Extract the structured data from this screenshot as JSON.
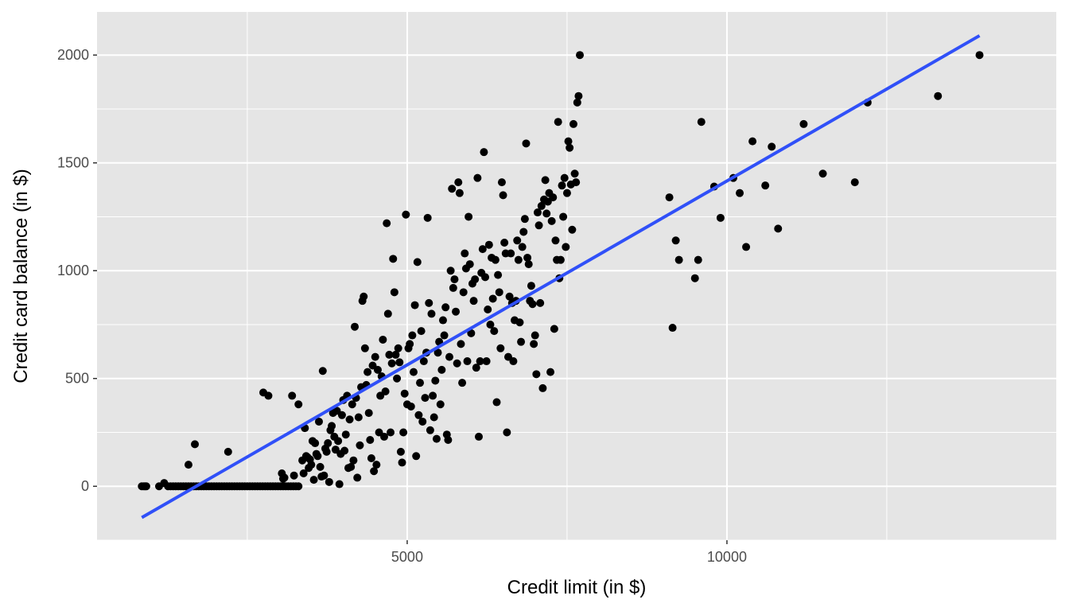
{
  "chart_data": {
    "type": "scatter",
    "xlabel": "Credit limit (in $)",
    "ylabel": "Credit card balance (in $)",
    "xlim": [
      150,
      15150
    ],
    "ylim": [
      -250,
      2200
    ],
    "xticks": [
      5000,
      10000
    ],
    "xticks_minor": [
      2500,
      7500,
      12500
    ],
    "yticks": [
      0,
      500,
      1000,
      1500,
      2000
    ],
    "yticks_minor": [
      -250,
      250,
      750,
      1250,
      1750
    ],
    "grid": true,
    "legend": "none",
    "colors": {
      "panel": "#e5e5e5",
      "grid": "#ffffff",
      "points": "#000000",
      "fit_line": "#3050f8"
    },
    "fit_line": {
      "x": [
        850,
        13950
      ],
      "y": [
        -145,
        2090
      ]
    },
    "points": [
      [
        850,
        0
      ],
      [
        880,
        0
      ],
      [
        900,
        0
      ],
      [
        920,
        0
      ],
      [
        1120,
        0
      ],
      [
        1200,
        15
      ],
      [
        1260,
        0
      ],
      [
        1300,
        0
      ],
      [
        1340,
        0
      ],
      [
        1380,
        0
      ],
      [
        1420,
        0
      ],
      [
        1460,
        0
      ],
      [
        1500,
        0
      ],
      [
        1540,
        0
      ],
      [
        1580,
        0
      ],
      [
        1620,
        0
      ],
      [
        1660,
        0
      ],
      [
        1700,
        0
      ],
      [
        1740,
        0
      ],
      [
        1780,
        0
      ],
      [
        1820,
        0
      ],
      [
        1860,
        0
      ],
      [
        1900,
        0
      ],
      [
        1940,
        0
      ],
      [
        1980,
        0
      ],
      [
        2020,
        0
      ],
      [
        2060,
        0
      ],
      [
        2100,
        0
      ],
      [
        2140,
        0
      ],
      [
        2180,
        0
      ],
      [
        2220,
        0
      ],
      [
        2260,
        0
      ],
      [
        2300,
        0
      ],
      [
        2340,
        0
      ],
      [
        2380,
        0
      ],
      [
        2420,
        0
      ],
      [
        2460,
        0
      ],
      [
        2500,
        0
      ],
      [
        2540,
        0
      ],
      [
        2580,
        0
      ],
      [
        2620,
        0
      ],
      [
        2660,
        0
      ],
      [
        2700,
        0
      ],
      [
        2740,
        0
      ],
      [
        2780,
        0
      ],
      [
        2820,
        0
      ],
      [
        2860,
        0
      ],
      [
        2900,
        0
      ],
      [
        2940,
        0
      ],
      [
        2980,
        0
      ],
      [
        3020,
        0
      ],
      [
        3060,
        0
      ],
      [
        3100,
        0
      ],
      [
        3140,
        0
      ],
      [
        3180,
        0
      ],
      [
        3220,
        0
      ],
      [
        3260,
        0
      ],
      [
        3300,
        0
      ],
      [
        1580,
        100
      ],
      [
        1680,
        195
      ],
      [
        2200,
        160
      ],
      [
        2750,
        435
      ],
      [
        2830,
        420
      ],
      [
        3040,
        60
      ],
      [
        3060,
        35
      ],
      [
        3080,
        40
      ],
      [
        3200,
        420
      ],
      [
        3230,
        50
      ],
      [
        3300,
        380
      ],
      [
        3360,
        120
      ],
      [
        3380,
        60
      ],
      [
        3400,
        270
      ],
      [
        3420,
        140
      ],
      [
        3440,
        135
      ],
      [
        3460,
        85
      ],
      [
        3480,
        125
      ],
      [
        3500,
        100
      ],
      [
        3520,
        210
      ],
      [
        3540,
        30
      ],
      [
        3560,
        200
      ],
      [
        3580,
        150
      ],
      [
        3600,
        140
      ],
      [
        3620,
        300
      ],
      [
        3640,
        90
      ],
      [
        3660,
        45
      ],
      [
        3680,
        535
      ],
      [
        3700,
        50
      ],
      [
        3720,
        175
      ],
      [
        3740,
        160
      ],
      [
        3760,
        200
      ],
      [
        3780,
        20
      ],
      [
        3800,
        260
      ],
      [
        3820,
        280
      ],
      [
        3840,
        340
      ],
      [
        3860,
        230
      ],
      [
        3880,
        170
      ],
      [
        3900,
        350
      ],
      [
        3920,
        210
      ],
      [
        3940,
        10
      ],
      [
        3960,
        150
      ],
      [
        3980,
        330
      ],
      [
        4000,
        400
      ],
      [
        4020,
        165
      ],
      [
        4040,
        240
      ],
      [
        4060,
        420
      ],
      [
        4080,
        85
      ],
      [
        4100,
        310
      ],
      [
        4120,
        90
      ],
      [
        4140,
        380
      ],
      [
        4160,
        120
      ],
      [
        4180,
        740
      ],
      [
        4200,
        410
      ],
      [
        4220,
        40
      ],
      [
        4240,
        320
      ],
      [
        4260,
        190
      ],
      [
        4280,
        460
      ],
      [
        4300,
        860
      ],
      [
        4320,
        880
      ],
      [
        4340,
        640
      ],
      [
        4360,
        470
      ],
      [
        4380,
        530
      ],
      [
        4400,
        340
      ],
      [
        4420,
        215
      ],
      [
        4440,
        130
      ],
      [
        4460,
        560
      ],
      [
        4480,
        70
      ],
      [
        4500,
        600
      ],
      [
        4520,
        100
      ],
      [
        4540,
        540
      ],
      [
        4560,
        250
      ],
      [
        4580,
        420
      ],
      [
        4600,
        510
      ],
      [
        4620,
        680
      ],
      [
        4640,
        230
      ],
      [
        4660,
        440
      ],
      [
        4680,
        1220
      ],
      [
        4700,
        800
      ],
      [
        4720,
        610
      ],
      [
        4740,
        250
      ],
      [
        4760,
        570
      ],
      [
        4780,
        1055
      ],
      [
        4800,
        900
      ],
      [
        4820,
        610
      ],
      [
        4840,
        500
      ],
      [
        4860,
        640
      ],
      [
        4880,
        575
      ],
      [
        4900,
        160
      ],
      [
        4920,
        110
      ],
      [
        4940,
        250
      ],
      [
        4960,
        430
      ],
      [
        4980,
        1260
      ],
      [
        5000,
        380
      ],
      [
        5020,
        640
      ],
      [
        5040,
        660
      ],
      [
        5060,
        370
      ],
      [
        5080,
        700
      ],
      [
        5100,
        530
      ],
      [
        5120,
        840
      ],
      [
        5140,
        140
      ],
      [
        5160,
        1040
      ],
      [
        5180,
        330
      ],
      [
        5200,
        480
      ],
      [
        5220,
        720
      ],
      [
        5240,
        300
      ],
      [
        5260,
        580
      ],
      [
        5280,
        410
      ],
      [
        5300,
        620
      ],
      [
        5320,
        1245
      ],
      [
        5340,
        850
      ],
      [
        5360,
        260
      ],
      [
        5380,
        800
      ],
      [
        5400,
        420
      ],
      [
        5420,
        320
      ],
      [
        5440,
        490
      ],
      [
        5460,
        220
      ],
      [
        5480,
        620
      ],
      [
        5500,
        670
      ],
      [
        5520,
        380
      ],
      [
        5540,
        540
      ],
      [
        5560,
        770
      ],
      [
        5580,
        700
      ],
      [
        5600,
        830
      ],
      [
        5620,
        240
      ],
      [
        5640,
        215
      ],
      [
        5660,
        600
      ],
      [
        5680,
        1000
      ],
      [
        5700,
        1380
      ],
      [
        5720,
        920
      ],
      [
        5740,
        960
      ],
      [
        5760,
        810
      ],
      [
        5780,
        570
      ],
      [
        5800,
        1410
      ],
      [
        5820,
        1360
      ],
      [
        5840,
        660
      ],
      [
        5860,
        480
      ],
      [
        5880,
        900
      ],
      [
        5900,
        1080
      ],
      [
        5920,
        1010
      ],
      [
        5940,
        580
      ],
      [
        5960,
        1250
      ],
      [
        5980,
        1030
      ],
      [
        6000,
        710
      ],
      [
        6020,
        940
      ],
      [
        6040,
        860
      ],
      [
        6060,
        960
      ],
      [
        6080,
        550
      ],
      [
        6100,
        1430
      ],
      [
        6120,
        230
      ],
      [
        6140,
        580
      ],
      [
        6160,
        990
      ],
      [
        6180,
        1100
      ],
      [
        6200,
        1550
      ],
      [
        6220,
        970
      ],
      [
        6240,
        580
      ],
      [
        6260,
        820
      ],
      [
        6280,
        1120
      ],
      [
        6300,
        750
      ],
      [
        6320,
        1060
      ],
      [
        6340,
        870
      ],
      [
        6360,
        720
      ],
      [
        6380,
        1050
      ],
      [
        6400,
        390
      ],
      [
        6420,
        980
      ],
      [
        6440,
        900
      ],
      [
        6460,
        640
      ],
      [
        6480,
        1410
      ],
      [
        6500,
        1350
      ],
      [
        6520,
        1130
      ],
      [
        6540,
        1080
      ],
      [
        6560,
        250
      ],
      [
        6580,
        600
      ],
      [
        6600,
        880
      ],
      [
        6620,
        1080
      ],
      [
        6640,
        850
      ],
      [
        6660,
        580
      ],
      [
        6680,
        770
      ],
      [
        6700,
        860
      ],
      [
        6720,
        1140
      ],
      [
        6740,
        1050
      ],
      [
        6760,
        760
      ],
      [
        6780,
        670
      ],
      [
        6800,
        1110
      ],
      [
        6820,
        1180
      ],
      [
        6840,
        1240
      ],
      [
        6860,
        1590
      ],
      [
        6880,
        1060
      ],
      [
        6900,
        1030
      ],
      [
        6920,
        860
      ],
      [
        6940,
        930
      ],
      [
        6960,
        845
      ],
      [
        6980,
        660
      ],
      [
        7000,
        700
      ],
      [
        7020,
        520
      ],
      [
        7040,
        1270
      ],
      [
        7060,
        1210
      ],
      [
        7080,
        850
      ],
      [
        7100,
        1300
      ],
      [
        7120,
        455
      ],
      [
        7140,
        1330
      ],
      [
        7160,
        1420
      ],
      [
        7180,
        1265
      ],
      [
        7200,
        1320
      ],
      [
        7220,
        1360
      ],
      [
        7240,
        530
      ],
      [
        7260,
        1230
      ],
      [
        7280,
        1340
      ],
      [
        7300,
        730
      ],
      [
        7320,
        1140
      ],
      [
        7340,
        1050
      ],
      [
        7360,
        1690
      ],
      [
        7380,
        965
      ],
      [
        7400,
        1050
      ],
      [
        7420,
        1395
      ],
      [
        7440,
        1250
      ],
      [
        7460,
        1430
      ],
      [
        7480,
        1110
      ],
      [
        7500,
        1360
      ],
      [
        7520,
        1600
      ],
      [
        7540,
        1570
      ],
      [
        7560,
        1400
      ],
      [
        7580,
        1190
      ],
      [
        7600,
        1680
      ],
      [
        7620,
        1450
      ],
      [
        7640,
        1410
      ],
      [
        7660,
        1780
      ],
      [
        7680,
        1810
      ],
      [
        7700,
        2000
      ],
      [
        9100,
        1340
      ],
      [
        9150,
        735
      ],
      [
        9200,
        1140
      ],
      [
        9250,
        1050
      ],
      [
        9500,
        965
      ],
      [
        9550,
        1050
      ],
      [
        9600,
        1690
      ],
      [
        9800,
        1390
      ],
      [
        9900,
        1245
      ],
      [
        10100,
        1430
      ],
      [
        10200,
        1360
      ],
      [
        10300,
        1110
      ],
      [
        10400,
        1600
      ],
      [
        10600,
        1395
      ],
      [
        10700,
        1575
      ],
      [
        10800,
        1195
      ],
      [
        11200,
        1680
      ],
      [
        11500,
        1450
      ],
      [
        12000,
        1410
      ],
      [
        12200,
        1780
      ],
      [
        13300,
        1810
      ],
      [
        13950,
        2000
      ]
    ]
  }
}
